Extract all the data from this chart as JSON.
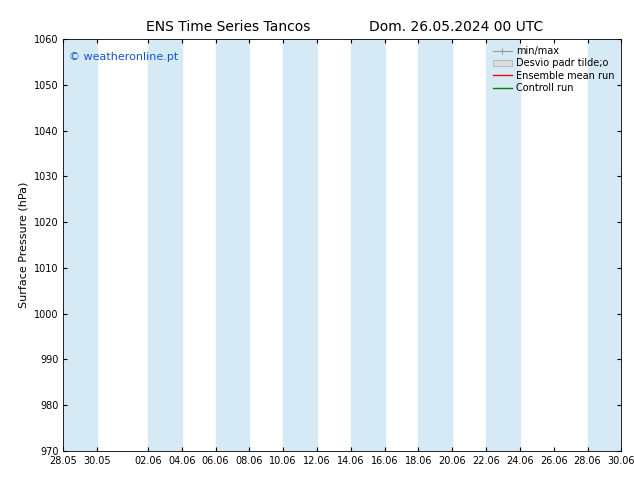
{
  "title_left": "ENS Time Series Tancos",
  "title_right": "Dom. 26.05.2024 00 UTC",
  "ylabel": "Surface Pressure (hPa)",
  "ylim": [
    970,
    1060
  ],
  "yticks": [
    970,
    980,
    990,
    1000,
    1010,
    1020,
    1030,
    1040,
    1050,
    1060
  ],
  "x_tick_labels": [
    "28.05",
    "30.05",
    "02.06",
    "04.06",
    "06.06",
    "08.06",
    "10.06",
    "12.06",
    "14.06",
    "16.06",
    "18.06",
    "20.06",
    "22.06",
    "24.06",
    "26.06",
    "28.06",
    "30.06"
  ],
  "x_tick_positions": [
    0,
    2,
    5,
    7,
    9,
    11,
    13,
    15,
    17,
    19,
    21,
    23,
    25,
    27,
    29,
    31,
    33
  ],
  "xlim": [
    0,
    33
  ],
  "band_color": "#d6eaf5",
  "band_alpha": 1.0,
  "background_color": "#ffffff",
  "watermark": "© weatheronline.pt",
  "watermark_color": "#1155cc",
  "legend_labels": [
    "min/max",
    "Desvio padr tilde;o",
    "Ensemble mean run",
    "Controll run"
  ],
  "title_fontsize": 10,
  "tick_fontsize": 7,
  "ylabel_fontsize": 8,
  "watermark_fontsize": 8,
  "fig_width": 6.34,
  "fig_height": 4.9,
  "dpi": 100,
  "band_starts": [
    0,
    5,
    9,
    13,
    17,
    21,
    25,
    31
  ],
  "band_ends": [
    2,
    7,
    11,
    15,
    19,
    23,
    27,
    33
  ]
}
